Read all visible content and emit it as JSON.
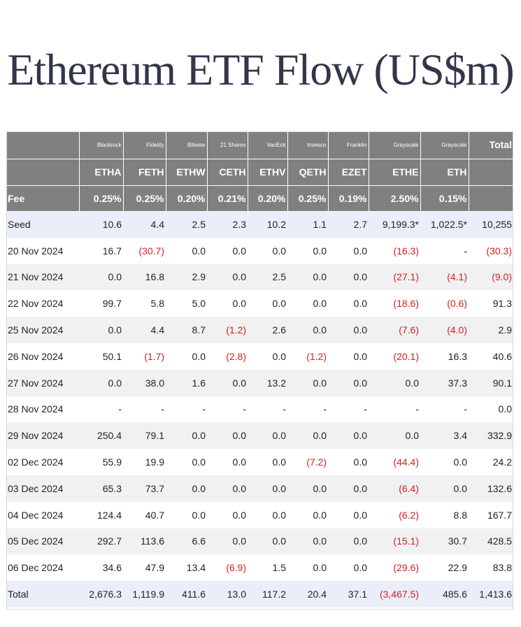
{
  "title": "Ethereum ETF Flow (US$m)",
  "columns": [
    {
      "issuer": "Blackrock",
      "ticker": "ETHA",
      "fee": "0.25%"
    },
    {
      "issuer": "Fidelity",
      "ticker": "FETH",
      "fee": "0.25%"
    },
    {
      "issuer": "Bitwise",
      "ticker": "ETHW",
      "fee": "0.20%"
    },
    {
      "issuer": "21 Shares",
      "ticker": "CETH",
      "fee": "0.21%"
    },
    {
      "issuer": "VanEck",
      "ticker": "ETHV",
      "fee": "0.20%"
    },
    {
      "issuer": "Invesco",
      "ticker": "QETH",
      "fee": "0.25%"
    },
    {
      "issuer": "Franklin",
      "ticker": "EZET",
      "fee": "0.19%"
    },
    {
      "issuer": "Grayscale",
      "ticker": "ETHE",
      "fee": "2.50%"
    },
    {
      "issuer": "Grayscale",
      "ticker": "ETH",
      "fee": "0.15%"
    }
  ],
  "total_header": "Total",
  "fee_label": "Fee",
  "rows": [
    {
      "label": "Seed",
      "values": [
        "10.6",
        "4.4",
        "2.5",
        "2.3",
        "10.2",
        "1.1",
        "2.7",
        "9,199.3*",
        "1,022.5*",
        "10,255"
      ]
    },
    {
      "label": "20 Nov 2024",
      "values": [
        "16.7",
        "(30.7)",
        "0.0",
        "0.0",
        "0.0",
        "0.0",
        "0.0",
        "(16.3)",
        "-",
        "(30.3)"
      ]
    },
    {
      "label": "21 Nov 2024",
      "values": [
        "0.0",
        "16.8",
        "2.9",
        "0.0",
        "2.5",
        "0.0",
        "0.0",
        "(27.1)",
        "(4.1)",
        "(9.0)"
      ]
    },
    {
      "label": "22 Nov 2024",
      "values": [
        "99.7",
        "5.8",
        "5.0",
        "0.0",
        "0.0",
        "0.0",
        "0.0",
        "(18.6)",
        "(0.6)",
        "91.3"
      ]
    },
    {
      "label": "25 Nov 2024",
      "values": [
        "0.0",
        "4.4",
        "8.7",
        "(1.2)",
        "2.6",
        "0.0",
        "0.0",
        "(7.6)",
        "(4.0)",
        "2.9"
      ]
    },
    {
      "label": "26 Nov 2024",
      "values": [
        "50.1",
        "(1.7)",
        "0.0",
        "(2.8)",
        "0.0",
        "(1.2)",
        "0.0",
        "(20.1)",
        "16.3",
        "40.6"
      ]
    },
    {
      "label": "27 Nov 2024",
      "values": [
        "0.0",
        "38.0",
        "1.6",
        "0.0",
        "13.2",
        "0.0",
        "0.0",
        "0.0",
        "37.3",
        "90.1"
      ]
    },
    {
      "label": "28 Nov 2024",
      "values": [
        "-",
        "-",
        "-",
        "-",
        "-",
        "-",
        "-",
        "-",
        "-",
        "0.0"
      ]
    },
    {
      "label": "29 Nov 2024",
      "values": [
        "250.4",
        "79.1",
        "0.0",
        "0.0",
        "0.0",
        "0.0",
        "0.0",
        "0.0",
        "3.4",
        "332.9"
      ]
    },
    {
      "label": "02 Dec 2024",
      "values": [
        "55.9",
        "19.9",
        "0.0",
        "0.0",
        "0.0",
        "(7.2)",
        "0.0",
        "(44.4)",
        "0.0",
        "24.2"
      ]
    },
    {
      "label": "03 Dec 2024",
      "values": [
        "65.3",
        "73.7",
        "0.0",
        "0.0",
        "0.0",
        "0.0",
        "0.0",
        "(6.4)",
        "0.0",
        "132.6"
      ]
    },
    {
      "label": "04 Dec 2024",
      "values": [
        "124.4",
        "40.7",
        "0.0",
        "0.0",
        "0.0",
        "0.0",
        "0.0",
        "(6.2)",
        "8.8",
        "167.7"
      ]
    },
    {
      "label": "05 Dec 2024",
      "values": [
        "292.7",
        "113.6",
        "6.6",
        "0.0",
        "0.0",
        "0.0",
        "0.0",
        "(15.1)",
        "30.7",
        "428.5"
      ]
    },
    {
      "label": "06 Dec 2024",
      "values": [
        "34.6",
        "47.9",
        "13.4",
        "(6.9)",
        "1.5",
        "0.0",
        "0.0",
        "(29.6)",
        "22.9",
        "83.8"
      ]
    },
    {
      "label": "Total",
      "values": [
        "2,676.3",
        "1,119.9",
        "411.6",
        "13.0",
        "117.2",
        "20.4",
        "37.1",
        "(3,467.5)",
        "485.6",
        "1,413.6"
      ]
    }
  ],
  "colors": {
    "header_bg": "#808080",
    "negative": "#d62020",
    "band": "#e9eef8",
    "stripe": "#f1f1f1",
    "title": "#33354a"
  }
}
